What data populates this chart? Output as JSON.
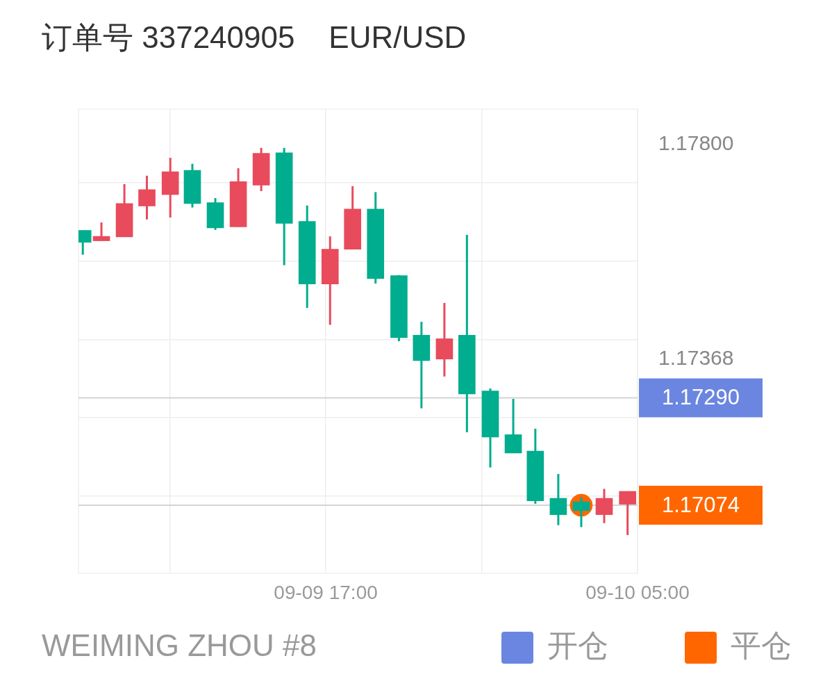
{
  "chart_data": {
    "type": "candlestick",
    "title": "订单号 337240905    EUR/USD",
    "annotations": [
      "WEIMING ZHOU #8"
    ],
    "series": [
      {
        "type": "candlestick",
        "x": [
          "--09-09T07:39",
          "--09-09T08:22",
          "--09-09T09:15",
          "--09-09T10:07",
          "--09-09T11:01",
          "--09-09T11:52",
          "--09-09T12:45",
          "--09-09T13:38",
          "--09-09T14:31",
          "--09-09T15:24",
          "--09-09T16:17",
          "--09-09T17:10",
          "--09-09T18:02",
          "--09-09T18:55",
          "--09-09T19:49",
          "--09-09T20:41",
          "--09-09T21:34",
          "--09-09T22:26",
          "--09-09T23:20",
          "--09-10T00:13",
          "--09-10T01:04",
          "--09-10T01:57",
          "--09-10T02:50",
          "--09-10T03:43",
          "--09-10T04:37"
        ],
        "ohlc": [
          [
            1.17627,
            1.17627,
            1.17578,
            1.17603
          ],
          [
            1.17606,
            1.17643,
            1.17606,
            1.17615
          ],
          [
            1.17614,
            1.1772,
            1.17614,
            1.17681
          ],
          [
            1.17676,
            1.17737,
            1.17649,
            1.17709
          ],
          [
            1.17699,
            1.17773,
            1.17653,
            1.17745
          ],
          [
            1.17748,
            1.17761,
            1.17673,
            1.17681
          ],
          [
            1.17683,
            1.17692,
            1.17628,
            1.17632
          ],
          [
            1.17634,
            1.17752,
            1.17634,
            1.17725
          ],
          [
            1.17718,
            1.17793,
            1.17706,
            1.17782
          ],
          [
            1.17783,
            1.17793,
            1.17557,
            1.17641
          ],
          [
            1.17645,
            1.17677,
            1.17471,
            1.17519
          ],
          [
            1.17519,
            1.17615,
            1.17437,
            1.17589
          ],
          [
            1.17589,
            1.17716,
            1.17589,
            1.1767
          ],
          [
            1.1767,
            1.17704,
            1.1752,
            1.1753
          ],
          [
            1.17536,
            1.17537,
            1.17404,
            1.17411
          ],
          [
            1.17416,
            1.17443,
            1.17269,
            1.17365
          ],
          [
            1.17368,
            1.17481,
            1.17333,
            1.17409
          ],
          [
            1.17416,
            1.17618,
            1.17221,
            1.17298
          ],
          [
            1.17304,
            1.17309,
            1.1715,
            1.17211
          ],
          [
            1.17216,
            1.17288,
            1.17179,
            1.17179
          ],
          [
            1.17183,
            1.17228,
            1.17077,
            1.17083
          ],
          [
            1.17088,
            1.17137,
            1.17034,
            1.17055
          ],
          [
            1.17081,
            1.1709,
            1.1703,
            1.17063
          ],
          [
            1.17055,
            1.17107,
            1.17038,
            1.17088
          ],
          [
            1.17076,
            1.17102,
            1.17014,
            1.17102
          ]
        ],
        "colors": [
          "#00ad8e",
          "#e84b5c",
          "#e84b5c",
          "#e84b5c",
          "#e84b5c",
          "#00ad8e",
          "#00ad8e",
          "#e84b5c",
          "#e84b5c",
          "#00ad8e",
          "#00ad8e",
          "#e84b5c",
          "#e84b5c",
          "#00ad8e",
          "#00ad8e",
          "#00ad8e",
          "#e84b5c",
          "#00ad8e",
          "#00ad8e",
          "#00ad8e",
          "#00ad8e",
          "#00ad8e",
          "#00ad8e",
          "#e84b5c",
          "#e84b5c"
        ]
      },
      {
        "type": "scatter",
        "name": "开仓",
        "color": "#6b86e0"
      },
      {
        "type": "scatter",
        "name": "平仓",
        "color": "#ff6600",
        "x": [
          "--09-10T02:50"
        ],
        "values": [
          1.17074
        ]
      }
    ],
    "marker": "circle",
    "xlim": [
      "--09-09T07:29",
      "--09-10T05:00"
    ],
    "xticks": [
      {
        "value": "--09-09T11:00",
        "label": null
      },
      {
        "value": "--09-09T17:00",
        "label": "09-09 17:00"
      },
      {
        "value": "--09-09T23:00",
        "label": null
      },
      {
        "value": "--09-10T05:00",
        "label": "09-10 05:00"
      }
    ],
    "ylim": [
      1.16937,
      1.17871
    ],
    "yticks": [
      {
        "value": 1.17093,
        "label": null
      },
      {
        "value": 1.17251,
        "label": null
      },
      {
        "value": 1.17368,
        "label": "1.17368"
      },
      {
        "value": 1.17407,
        "label": null
      },
      {
        "value": 1.17565,
        "label": null
      },
      {
        "value": 1.17723,
        "label": null
      },
      {
        "value": 1.178,
        "label": "1.17800"
      }
    ],
    "ref_lines": [
      {
        "axis": "y",
        "value": 1.1729,
        "label": "1.17290",
        "color": "#d4d4d4"
      },
      {
        "axis": "y",
        "value": 1.17074,
        "label": "1.17074",
        "color": "#d4d4d4"
      }
    ],
    "grid": true,
    "legend": "bottom right"
  }
}
